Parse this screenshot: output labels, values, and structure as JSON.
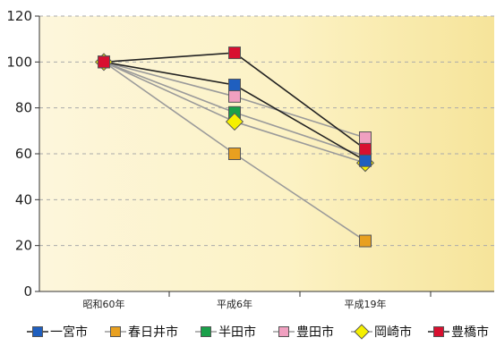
{
  "chart_data": {
    "type": "line",
    "title": "",
    "xlabel": "",
    "ylabel": "",
    "categories": [
      "昭和60年",
      "平成6年",
      "平成19年"
    ],
    "ylim": [
      0,
      120
    ],
    "yticks": [
      0,
      20,
      40,
      60,
      80,
      100,
      120
    ],
    "grid": "horizontal dashed",
    "legend_position": "bottom",
    "series": [
      {
        "name": "一宮市",
        "values": [
          100,
          90,
          57
        ],
        "color": "#1f5fbf",
        "line_color": "#222222",
        "marker": "square"
      },
      {
        "name": "春日井市",
        "values": [
          100,
          60,
          22
        ],
        "color": "#e8a020",
        "line_color": "#9a9a9a",
        "marker": "square"
      },
      {
        "name": "半田市",
        "values": [
          100,
          78,
          59
        ],
        "color": "#1aa04a",
        "line_color": "#9a9a9a",
        "marker": "square"
      },
      {
        "name": "豊田市",
        "values": [
          100,
          85,
          67
        ],
        "color": "#f0a0c0",
        "line_color": "#9a9a9a",
        "marker": "square"
      },
      {
        "name": "岡崎市",
        "values": [
          100,
          74,
          56
        ],
        "color": "#f5f000",
        "line_color": "#9a9a9a",
        "marker": "diamond"
      },
      {
        "name": "豊橋市",
        "values": [
          100,
          104,
          62
        ],
        "color": "#d81030",
        "line_color": "#222222",
        "marker": "square"
      }
    ]
  }
}
